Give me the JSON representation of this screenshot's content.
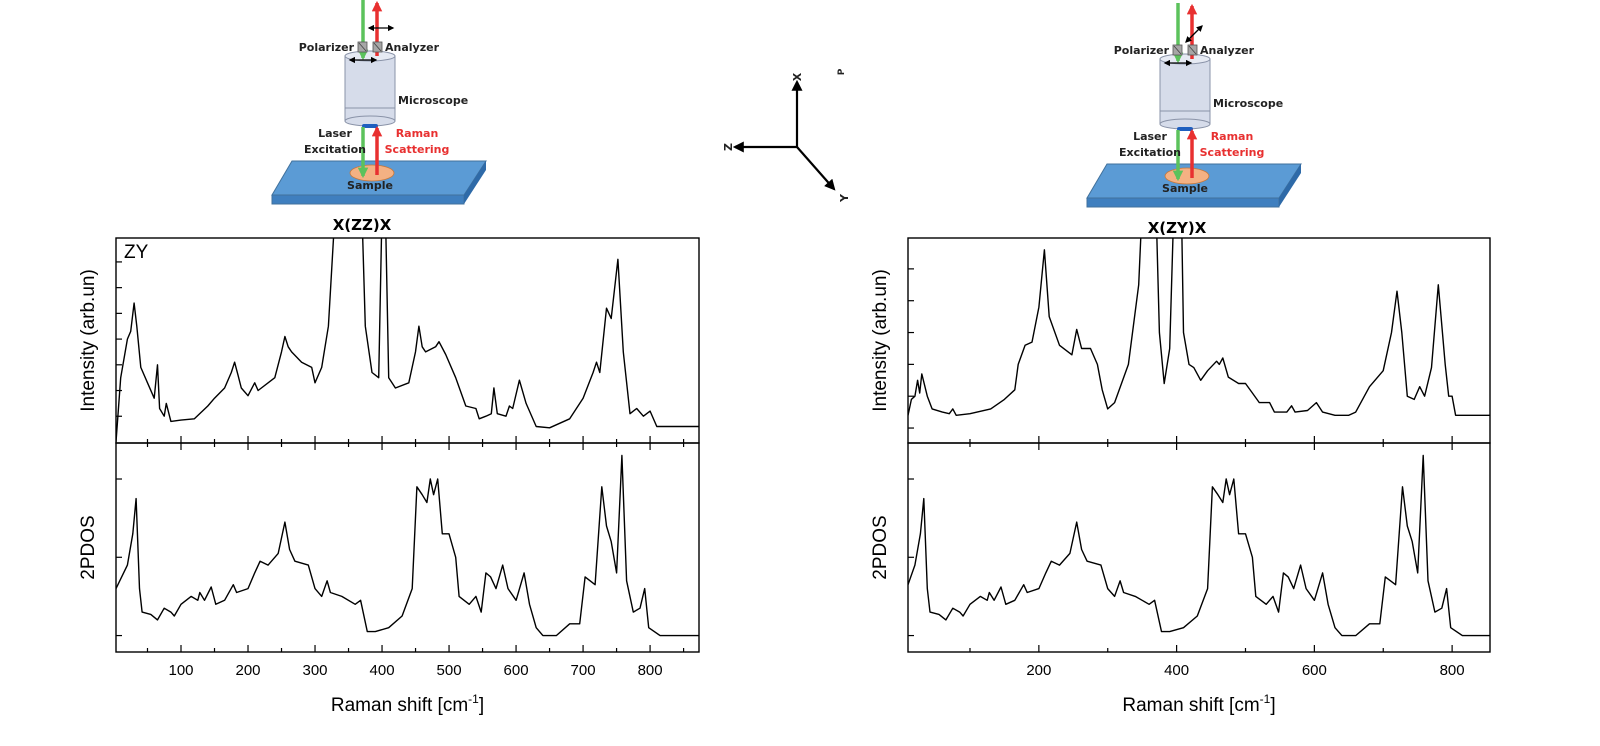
{
  "colors": {
    "laser": "#5cc25c",
    "raman": "#e83030",
    "slab": "#5b9bd5",
    "sample": "#f4b183",
    "microscope": "#d6dcea",
    "raman_text": "#e83030"
  },
  "diagrams": [
    {
      "polarizer": "Polarizer",
      "analyzer": "Analyzer",
      "microscope": "Microscope",
      "laser_1": "Laser",
      "laser_2": "Excitation",
      "raman_1": "Raman",
      "raman_2": "Scattering",
      "sample": "Sample",
      "configuration": "X(ZZ)X",
      "analyzer_orientation": "horizontal"
    },
    {
      "polarizer": "Polarizer",
      "analyzer": "Analyzer",
      "microscope": "Microscope",
      "laser_1": "Laser",
      "laser_2": "Excitation",
      "raman_1": "Raman",
      "raman_2": "Scattering",
      "sample": "Sample",
      "configuration": "X(ZY)X",
      "analyzer_orientation": "diagonal"
    }
  ],
  "axes_diagram": {
    "x": "X",
    "z": "Z",
    "y": "Y",
    "p": "P"
  },
  "chart_data": [
    {
      "type": "line",
      "panel": "left-top",
      "annotation": "ZY",
      "ylabel": "Intensity (arb.un)",
      "xlim": [
        3,
        873
      ],
      "ylim": [
        -0.54,
        7.43
      ],
      "yticks": [
        0.5,
        1.5,
        2.5,
        3.5,
        4.5,
        5.5,
        6.5
      ],
      "grid": false,
      "series": [
        {
          "x": [
            3,
            10,
            20,
            25,
            30,
            34,
            40,
            50,
            60,
            65,
            68,
            75,
            78,
            85,
            100,
            120,
            140,
            150,
            165,
            175,
            180,
            185,
            190,
            200,
            210,
            215,
            240,
            250,
            255,
            260,
            265,
            280,
            295,
            300,
            310,
            320,
            330,
            370,
            375,
            385,
            395,
            400,
            405,
            410,
            420,
            440,
            450,
            455,
            460,
            465,
            480,
            485,
            495,
            510,
            525,
            540,
            545,
            555,
            563,
            567,
            572,
            585,
            590,
            595,
            605,
            615,
            630,
            650,
            680,
            700,
            715,
            720,
            725,
            735,
            742,
            752,
            760,
            770,
            780,
            790,
            800,
            810,
            873
          ],
          "y": [
            -0.5,
            2.0,
            3.5,
            3.8,
            4.9,
            4.0,
            2.4,
            1.8,
            1.2,
            2.5,
            0.8,
            0.5,
            1.0,
            0.3,
            0.35,
            0.4,
            0.9,
            1.2,
            1.6,
            2.2,
            2.6,
            2.1,
            1.6,
            1.3,
            1.8,
            1.5,
            2.0,
            3.0,
            3.6,
            3.2,
            3.0,
            2.6,
            2.4,
            1.8,
            2.4,
            4.0,
            8.5,
            8.5,
            4.0,
            2.2,
            2.0,
            8.5,
            8.5,
            2.0,
            1.6,
            1.8,
            3.0,
            4.0,
            3.2,
            3.0,
            3.2,
            3.4,
            2.9,
            2.0,
            0.9,
            0.8,
            0.4,
            0.5,
            0.6,
            1.6,
            0.6,
            0.5,
            0.9,
            0.8,
            1.9,
            1.0,
            0.1,
            0.05,
            0.4,
            1.2,
            2.2,
            2.6,
            2.2,
            4.7,
            4.3,
            6.6,
            3.0,
            0.6,
            0.8,
            0.5,
            0.7,
            0.1,
            0.1
          ]
        }
      ]
    },
    {
      "type": "line",
      "panel": "left-bottom",
      "ylabel": "2PDOS",
      "xlim": [
        3,
        873
      ],
      "ylim": [
        -0.21,
        2.46
      ],
      "yticks": [
        0,
        1,
        2
      ],
      "grid": false,
      "xticks": [
        100,
        200,
        300,
        400,
        500,
        600,
        700,
        800
      ],
      "xlabel_parts": [
        "Raman shift [cm",
        "-1",
        "]"
      ],
      "series": [
        {
          "x": [
            3,
            20,
            28,
            33,
            38,
            42,
            55,
            65,
            75,
            85,
            90,
            100,
            115,
            125,
            128,
            135,
            145,
            152,
            165,
            178,
            183,
            200,
            210,
            218,
            230,
            245,
            255,
            262,
            270,
            290,
            300,
            310,
            318,
            323,
            340,
            360,
            368,
            378,
            390,
            410,
            430,
            445,
            452,
            460,
            467,
            472,
            477,
            483,
            490,
            500,
            510,
            515,
            530,
            540,
            548,
            555,
            562,
            570,
            580,
            588,
            600,
            612,
            620,
            630,
            640,
            660,
            680,
            695,
            703,
            718,
            728,
            735,
            742,
            750,
            758,
            765,
            775,
            785,
            792,
            798,
            815,
            873
          ],
          "y": [
            0.6,
            0.9,
            1.3,
            1.75,
            0.6,
            0.3,
            0.27,
            0.2,
            0.35,
            0.3,
            0.25,
            0.4,
            0.5,
            0.45,
            0.55,
            0.45,
            0.62,
            0.4,
            0.45,
            0.65,
            0.55,
            0.6,
            0.8,
            0.95,
            0.9,
            1.05,
            1.45,
            1.1,
            0.95,
            0.9,
            0.6,
            0.5,
            0.7,
            0.55,
            0.5,
            0.4,
            0.45,
            0.05,
            0.05,
            0.1,
            0.25,
            0.6,
            1.9,
            1.8,
            1.7,
            2.0,
            1.8,
            2.0,
            1.3,
            1.3,
            1.0,
            0.5,
            0.4,
            0.5,
            0.3,
            0.8,
            0.75,
            0.6,
            0.9,
            0.6,
            0.45,
            0.8,
            0.4,
            0.1,
            0.0,
            0.0,
            0.15,
            0.15,
            0.75,
            0.65,
            1.9,
            1.4,
            1.2,
            0.8,
            2.3,
            0.7,
            0.3,
            0.35,
            0.6,
            0.1,
            0.0,
            0.0
          ]
        }
      ]
    },
    {
      "type": "line",
      "panel": "right-top",
      "ylabel": "Intensity (arb.un)",
      "xlim": [
        10,
        855
      ],
      "ylim": [
        -0.47,
        5.97
      ],
      "yticks": [
        0,
        1,
        2,
        3,
        4,
        5
      ],
      "grid": false,
      "series": [
        {
          "x": [
            10,
            15,
            20,
            24,
            27,
            30,
            38,
            45,
            60,
            70,
            75,
            80,
            100,
            130,
            150,
            165,
            170,
            180,
            190,
            200,
            208,
            215,
            230,
            248,
            255,
            262,
            275,
            285,
            292,
            300,
            310,
            330,
            345,
            350,
            370,
            375,
            382,
            390,
            396,
            407,
            410,
            418,
            425,
            435,
            445,
            458,
            462,
            467,
            475,
            490,
            500,
            510,
            520,
            535,
            542,
            560,
            567,
            572,
            590,
            603,
            612,
            630,
            650,
            660,
            680,
            700,
            712,
            720,
            727,
            735,
            745,
            753,
            760,
            770,
            780,
            790,
            795,
            800,
            805,
            830,
            855
          ],
          "y": [
            0.4,
            0.9,
            1.0,
            1.5,
            1.1,
            1.7,
            1.0,
            0.6,
            0.5,
            0.45,
            0.6,
            0.4,
            0.45,
            0.6,
            0.9,
            1.2,
            2.0,
            2.6,
            2.7,
            3.8,
            5.6,
            3.5,
            2.6,
            2.3,
            3.1,
            2.5,
            2.5,
            2.0,
            1.2,
            0.6,
            0.8,
            2.0,
            4.5,
            7.0,
            7.0,
            3.0,
            1.4,
            2.5,
            7.0,
            7.0,
            3.0,
            2.0,
            1.9,
            1.5,
            1.8,
            2.1,
            2.0,
            2.2,
            1.6,
            1.4,
            1.4,
            1.1,
            0.8,
            0.8,
            0.5,
            0.5,
            0.7,
            0.5,
            0.55,
            0.8,
            0.5,
            0.4,
            0.4,
            0.5,
            1.3,
            1.8,
            3.0,
            4.3,
            3.0,
            1.0,
            0.9,
            1.3,
            1.0,
            1.9,
            4.5,
            2.0,
            1.0,
            1.0,
            0.4,
            0.4,
            0.4
          ]
        }
      ]
    },
    {
      "type": "line",
      "panel": "right-bottom",
      "ylabel": "2PDOS",
      "xlim": [
        10,
        855
      ],
      "ylim": [
        -0.21,
        2.46
      ],
      "yticks": [
        0,
        1,
        2
      ],
      "grid": false,
      "xticks": [
        200,
        400,
        600,
        800
      ],
      "xlabel_parts": [
        "Raman shift [cm",
        "-1",
        "]"
      ],
      "series": [
        {
          "x": [
            10,
            20,
            28,
            33,
            38,
            42,
            55,
            65,
            75,
            85,
            90,
            100,
            115,
            125,
            128,
            135,
            145,
            152,
            165,
            178,
            183,
            200,
            210,
            218,
            230,
            245,
            255,
            262,
            270,
            290,
            300,
            310,
            318,
            323,
            340,
            360,
            368,
            378,
            390,
            410,
            430,
            445,
            452,
            460,
            467,
            472,
            477,
            483,
            490,
            500,
            510,
            515,
            530,
            540,
            548,
            555,
            562,
            570,
            580,
            588,
            600,
            612,
            620,
            630,
            640,
            660,
            680,
            695,
            703,
            718,
            728,
            735,
            742,
            750,
            758,
            765,
            775,
            785,
            792,
            798,
            815,
            855
          ],
          "y": [
            0.65,
            0.9,
            1.3,
            1.75,
            0.6,
            0.3,
            0.27,
            0.2,
            0.35,
            0.3,
            0.25,
            0.4,
            0.5,
            0.45,
            0.55,
            0.45,
            0.62,
            0.4,
            0.45,
            0.65,
            0.55,
            0.6,
            0.8,
            0.95,
            0.9,
            1.05,
            1.45,
            1.1,
            0.95,
            0.9,
            0.6,
            0.5,
            0.7,
            0.55,
            0.5,
            0.4,
            0.45,
            0.05,
            0.05,
            0.1,
            0.25,
            0.6,
            1.9,
            1.8,
            1.7,
            2.0,
            1.8,
            2.0,
            1.3,
            1.3,
            1.0,
            0.5,
            0.4,
            0.5,
            0.3,
            0.8,
            0.75,
            0.6,
            0.9,
            0.6,
            0.45,
            0.8,
            0.4,
            0.1,
            0.0,
            0.0,
            0.15,
            0.15,
            0.75,
            0.65,
            1.9,
            1.4,
            1.2,
            0.8,
            2.3,
            0.7,
            0.3,
            0.35,
            0.6,
            0.1,
            0.0,
            0.0
          ]
        }
      ]
    }
  ]
}
